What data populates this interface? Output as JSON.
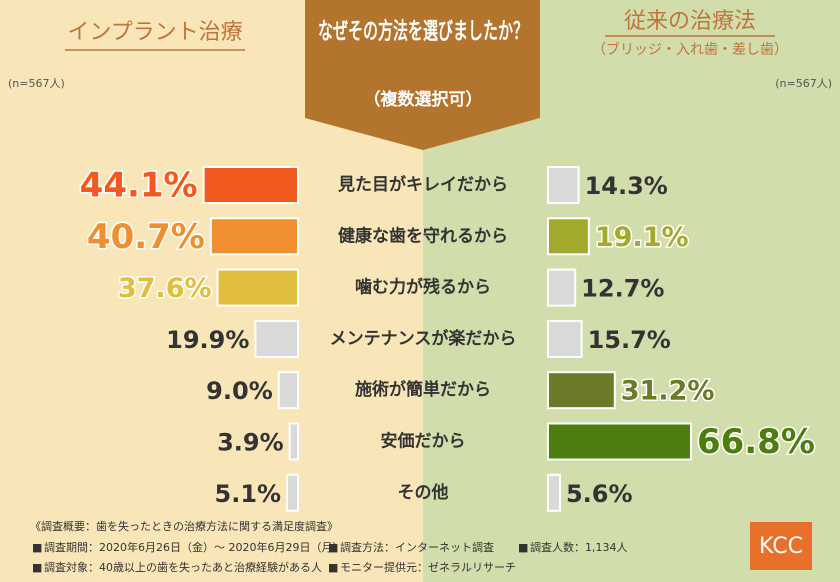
{
  "chart_data": {
    "type": "butterfly",
    "title": "なぜその方法を選びましたか？",
    "subtitle": "（複数選択可）",
    "categories": [
      "見た目がキレイだから",
      "健康な歯を守れるから",
      "噛む力が残るから",
      "メンテナンスが楽だから",
      "施術が簡単だから",
      "安価だから",
      "その他"
    ],
    "series": [
      {
        "name": "インプラント治療",
        "note": "(n=567人)",
        "values": [
          44.1,
          40.7,
          37.6,
          19.9,
          9.0,
          3.9,
          5.1
        ],
        "value_labels": [
          "44.1%",
          "40.7%",
          "37.6%",
          "19.9%",
          "9.0%",
          "3.9%",
          "5.1%"
        ],
        "colors": [
          "#f05a1e",
          "#ef8f2f",
          "#e0bf3e",
          "#d9d9d9",
          "#d9d9d9",
          "#d9d9d9",
          "#d9d9d9"
        ]
      },
      {
        "name": "従来の治療法",
        "subname": "（ブリッジ・入れ歯・差し歯）",
        "note": "(n=567人)",
        "values": [
          14.3,
          19.1,
          12.7,
          15.7,
          31.2,
          66.8,
          5.6
        ],
        "value_labels": [
          "14.3%",
          "19.1%",
          "12.7%",
          "15.7%",
          "31.2%",
          "66.8%",
          "5.6%"
        ],
        "colors": [
          "#d9d9d9",
          "#a3a92c",
          "#d9d9d9",
          "#d9d9d9",
          "#6b7a28",
          "#4d7c0f",
          "#d9d9d9"
        ]
      }
    ]
  },
  "survey": {
    "heading": "《調査概要：歯を失ったときの治療方法に関する満足度調査》",
    "items": [
      "調査期間：2020年6月26日（金）～ 2020年6月29日（月）",
      "調査方法：インターネット調査",
      "調査人数：1,134人",
      "調査対象：40歳以上の歯を失ったあと治療経験がある人",
      "モニター提供元：ゼネラルリサーチ"
    ]
  },
  "logo": "KCC"
}
